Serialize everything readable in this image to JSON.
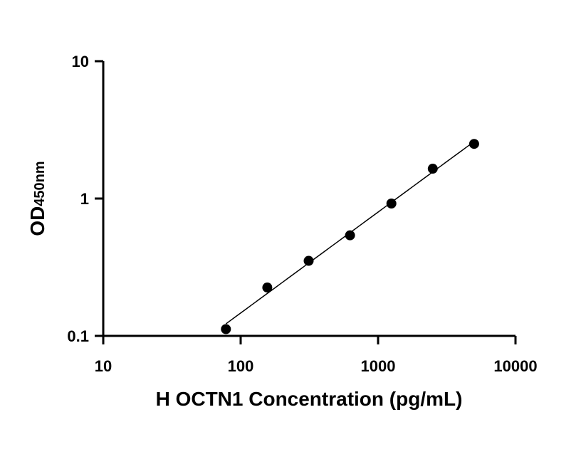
{
  "chart_data": {
    "type": "scatter",
    "title": "",
    "xlabel": "H OCTN1 Concentration (pg/mL)",
    "ylabel": "OD",
    "ylabel_subscript": "450nm",
    "x_scale": "log",
    "y_scale": "log",
    "xlim": [
      10,
      10000
    ],
    "ylim": [
      0.1,
      10
    ],
    "x_ticks": [
      10,
      100,
      1000,
      10000
    ],
    "x_tick_labels": [
      "10",
      "100",
      "1000",
      "10000"
    ],
    "y_ticks": [
      0.1,
      1,
      10
    ],
    "y_tick_labels": [
      "0.1",
      "1",
      "10"
    ],
    "grid": false,
    "legend": "none",
    "marker_color": "#000000",
    "line_color": "#000000",
    "series": [
      {
        "x": [
          78.125,
          156.25,
          312.5,
          625,
          1250,
          2500,
          5000
        ],
        "y": [
          0.112,
          0.225,
          0.352,
          0.54,
          0.92,
          1.65,
          2.5
        ]
      }
    ]
  }
}
